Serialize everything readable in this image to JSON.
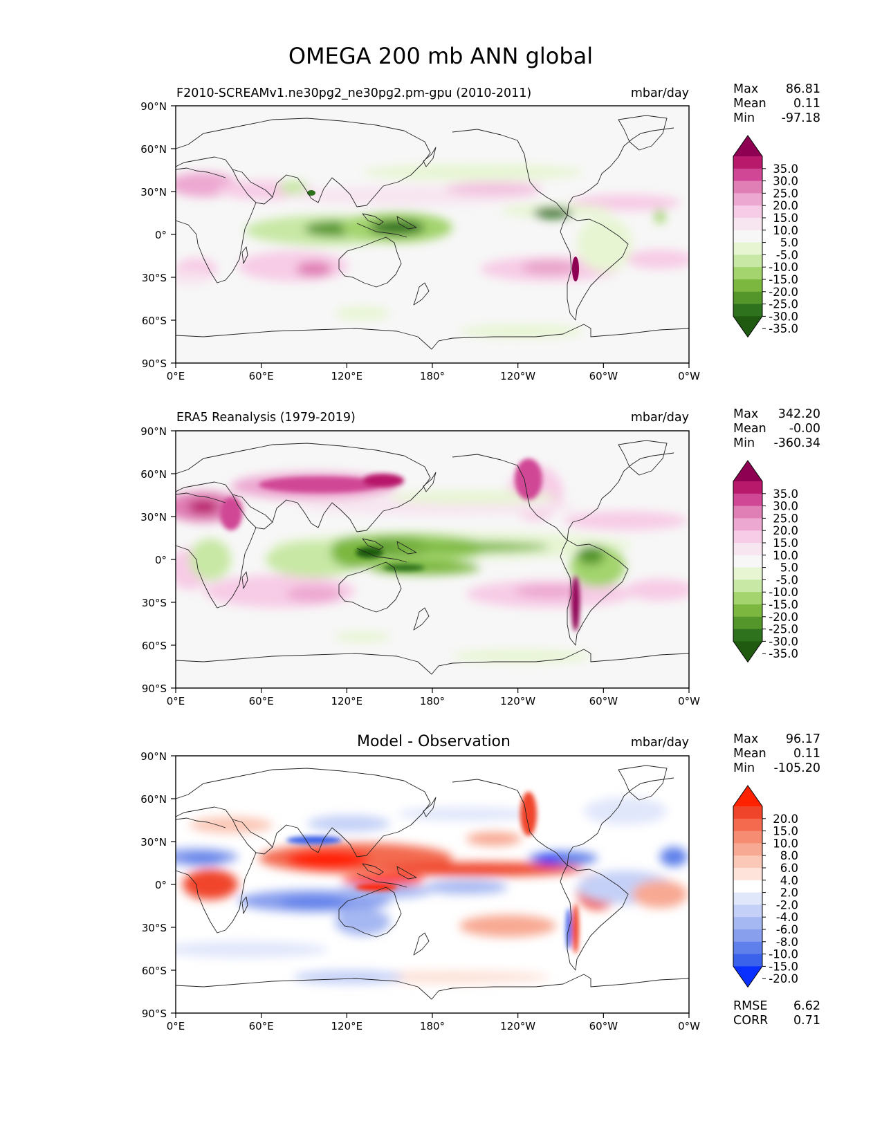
{
  "figure": {
    "title": "OMEGA 200 mb ANN global"
  },
  "axes_labels": {
    "lat_ticks": [
      "90°N",
      "60°N",
      "30°N",
      "0°",
      "30°S",
      "60°S",
      "90°S"
    ],
    "lon_ticks": [
      "0°E",
      "60°E",
      "120°E",
      "180°",
      "120°W",
      "60°W",
      "0°W"
    ]
  },
  "panels": [
    {
      "left_title": "F2010-SCREAMv1.ne30pg2_ne30pg2.pm-gpu (2010-2011)",
      "center_title": "",
      "units": "mbar/day",
      "stats": [
        [
          "Max",
          "86.81"
        ],
        [
          "Mean",
          "0.11"
        ],
        [
          "Min",
          "-97.18"
        ]
      ],
      "colorbar": {
        "labels": [
          "35.0",
          "30.0",
          "25.0",
          "20.0",
          "15.0",
          "10.0",
          "5.0",
          "-5.0",
          "-10.0",
          "-15.0",
          "-20.0",
          "-25.0",
          "-30.0",
          "-35.0"
        ],
        "colors": [
          "#8e0152",
          "#b8196b",
          "#d04795",
          "#e07fb5",
          "#eda8d1",
          "#f7cce6",
          "#f7e5f0",
          "#f7f7f7",
          "#e7f5d3",
          "#c8e8a5",
          "#a3d46d",
          "#7cb840",
          "#54962a",
          "#2f721d",
          "#1f5a10"
        ]
      }
    },
    {
      "left_title": "ERA5 Reanalysis (1979-2019)",
      "center_title": "",
      "units": "mbar/day",
      "stats": [
        [
          "Max",
          "342.20"
        ],
        [
          "Mean",
          "-0.00"
        ],
        [
          "Min",
          "-360.34"
        ]
      ],
      "colorbar": {
        "labels": [
          "35.0",
          "30.0",
          "25.0",
          "20.0",
          "15.0",
          "10.0",
          "5.0",
          "-5.0",
          "-10.0",
          "-15.0",
          "-20.0",
          "-25.0",
          "-30.0",
          "-35.0"
        ],
        "colors": [
          "#8e0152",
          "#b8196b",
          "#d04795",
          "#e07fb5",
          "#eda8d1",
          "#f7cce6",
          "#f7e5f0",
          "#f7f7f7",
          "#e7f5d3",
          "#c8e8a5",
          "#a3d46d",
          "#7cb840",
          "#54962a",
          "#2f721d",
          "#1f5a10"
        ]
      }
    },
    {
      "left_title": "",
      "center_title": "Model - Observation",
      "units": "mbar/day",
      "stats": [
        [
          "Max",
          "96.17"
        ],
        [
          "Mean",
          "0.11"
        ],
        [
          "Min",
          "-105.20"
        ]
      ],
      "extra_stats": [
        [
          "RMSE",
          "6.62"
        ],
        [
          "CORR",
          "0.71"
        ]
      ],
      "colorbar": {
        "labels": [
          "20.0",
          "15.0",
          "10.0",
          "8.0",
          "6.0",
          "4.0",
          "2.0",
          "-2.0",
          "-4.0",
          "-6.0",
          "-8.0",
          "-10.0",
          "-15.0",
          "-20.0"
        ],
        "colors": [
          "#ff2200",
          "#f0442a",
          "#f36a4f",
          "#f68c72",
          "#f8a993",
          "#fbc7b6",
          "#fde3da",
          "#ffffff",
          "#e1e7fb",
          "#c4d0f7",
          "#a6b8f2",
          "#889fee",
          "#5f80ea",
          "#3a62ea",
          "#0a30ff"
        ]
      }
    }
  ]
}
